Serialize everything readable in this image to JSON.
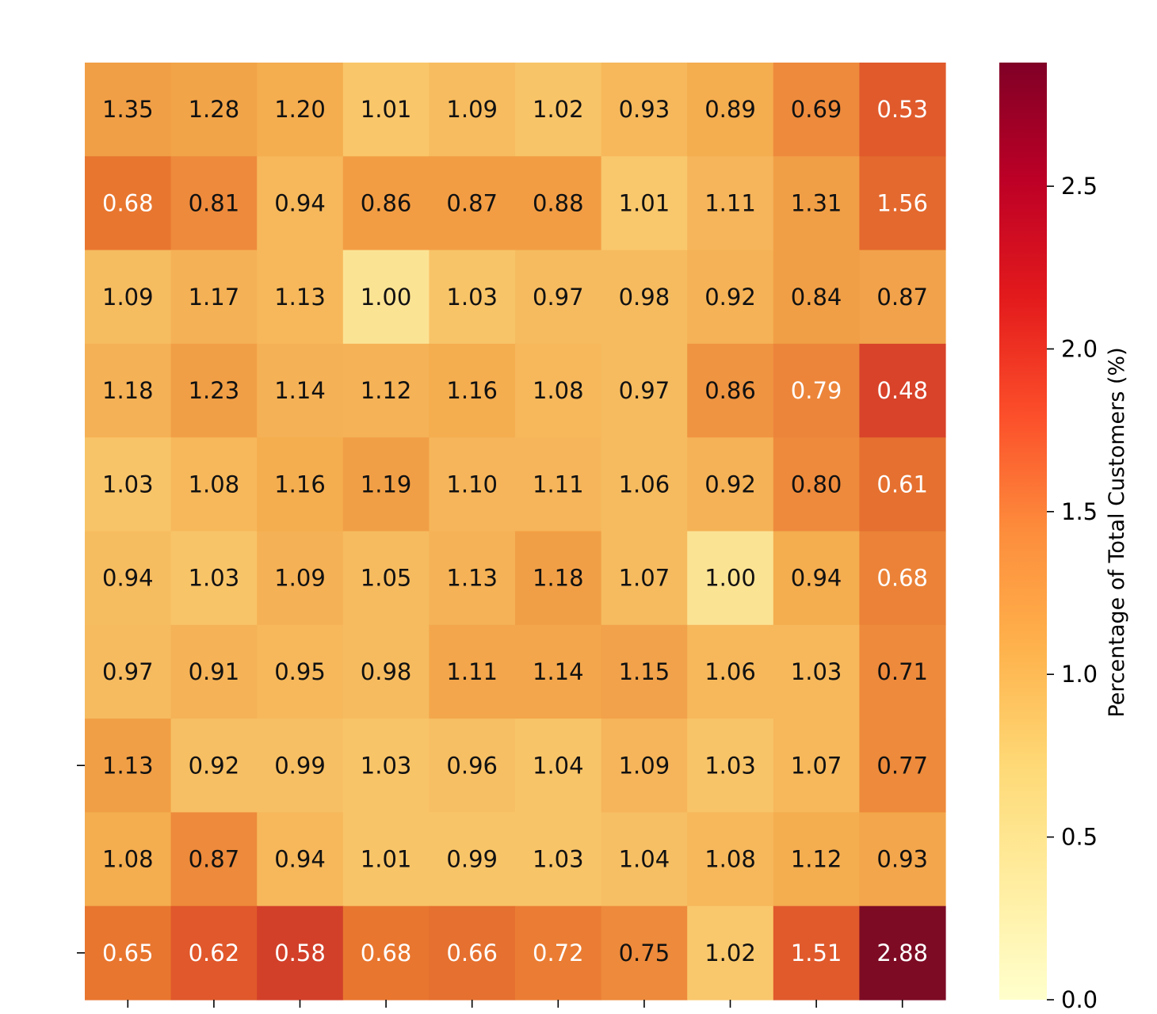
{
  "chart_data": {
    "type": "heatmap",
    "title": "",
    "xlabel": "",
    "ylabel": "",
    "colormap": "YlOrRd",
    "colorbar": {
      "label": "Percentage of Total Customers (%)",
      "range": [
        0,
        2.88
      ],
      "ticks": [
        0.0,
        0.5,
        1.0,
        1.5,
        2.0,
        2.5
      ],
      "tick_labels": [
        "0.0",
        "0.5",
        "1.0",
        "1.5",
        "2.0",
        "2.5"
      ]
    },
    "annotation_format": "0.00",
    "values": [
      [
        1.35,
        1.28,
        1.2,
        1.01,
        1.09,
        1.02,
        0.93,
        0.89,
        0.69,
        0.53
      ],
      [
        0.68,
        0.81,
        0.94,
        0.86,
        0.87,
        0.88,
        1.01,
        1.11,
        1.31,
        1.56
      ],
      [
        1.09,
        1.17,
        1.13,
        1.0,
        1.03,
        0.97,
        0.98,
        0.92,
        0.84,
        0.87
      ],
      [
        1.18,
        1.23,
        1.14,
        1.12,
        1.16,
        1.08,
        0.97,
        0.86,
        0.79,
        0.48
      ],
      [
        1.03,
        1.08,
        1.16,
        1.19,
        1.1,
        1.11,
        1.06,
        0.92,
        0.8,
        0.61
      ],
      [
        0.94,
        1.03,
        1.09,
        1.05,
        1.13,
        1.18,
        1.07,
        1.0,
        0.94,
        0.68
      ],
      [
        0.97,
        0.91,
        0.95,
        0.98,
        1.11,
        1.14,
        1.15,
        1.06,
        1.03,
        0.71
      ],
      [
        1.13,
        0.92,
        0.99,
        1.03,
        0.96,
        1.04,
        1.09,
        1.03,
        1.07,
        0.77
      ],
      [
        1.08,
        0.87,
        0.94,
        1.01,
        0.99,
        1.03,
        1.04,
        1.08,
        1.12,
        0.93
      ],
      [
        0.65,
        0.62,
        0.58,
        0.68,
        0.66,
        0.72,
        0.75,
        1.02,
        1.51,
        2.88
      ]
    ],
    "note_colors_per_row_normalized": true,
    "cell_colors": [
      [
        "#f19f46",
        "#f2a448",
        "#f4ad4f",
        "#f9c66a",
        "#f7bc5f",
        "#f8c468",
        "#f6b85b",
        "#f4ad4f",
        "#ee8a3c",
        "#e05a2c"
      ],
      [
        "#e8762f",
        "#ee8a3c",
        "#f6b85b",
        "#f29d44",
        "#f29d44",
        "#f29d44",
        "#f9c86c",
        "#f6b55a",
        "#f19f46",
        "#e4692e"
      ],
      [
        "#f6bc60",
        "#f5b155",
        "#f6b85b",
        "#fbe394",
        "#f8c468",
        "#f6bb5f",
        "#f6bb5f",
        "#f5b256",
        "#f19f46",
        "#f2a24a"
      ],
      [
        "#f5b155",
        "#f19f46",
        "#f5b155",
        "#f5b256",
        "#f4ad4f",
        "#f6b85b",
        "#f6bb5f",
        "#ef9441",
        "#ec853a",
        "#d8432a"
      ],
      [
        "#f8c468",
        "#f6b85b",
        "#f4ad4f",
        "#f19f46",
        "#f6b55a",
        "#f6b55a",
        "#f6bb5f",
        "#f5b256",
        "#ee8a3c",
        "#e5702f"
      ],
      [
        "#f6bc60",
        "#f8c468",
        "#f5b155",
        "#f6bb5f",
        "#f5b256",
        "#f19f46",
        "#f6bb5f",
        "#fbe394",
        "#f4ad4f",
        "#eb8237"
      ],
      [
        "#f6bb5f",
        "#f5b256",
        "#f6b85b",
        "#f6bb5f",
        "#f3a64b",
        "#f3a64b",
        "#f2a24a",
        "#f6b85b",
        "#f6b85b",
        "#ee8a3c"
      ],
      [
        "#f19f46",
        "#f7bf63",
        "#f7bf63",
        "#f8c468",
        "#f7bf63",
        "#f8c468",
        "#f6b55a",
        "#f8c468",
        "#f6b85b",
        "#ed8a3b"
      ],
      [
        "#f4ad4f",
        "#ed8a3b",
        "#f6b85b",
        "#f8c468",
        "#f8c468",
        "#f8c468",
        "#f7bf63",
        "#f6b85b",
        "#f4ad4f",
        "#f3a64b"
      ],
      [
        "#e8762f",
        "#e0582b",
        "#d2402a",
        "#e8762f",
        "#e5702f",
        "#ea7d33",
        "#ed8a3b",
        "#f9c86c",
        "#e05a2c",
        "#7d0b24"
      ]
    ],
    "x_ticks": 10,
    "y_ticks_visible": [
      7,
      9
    ]
  }
}
